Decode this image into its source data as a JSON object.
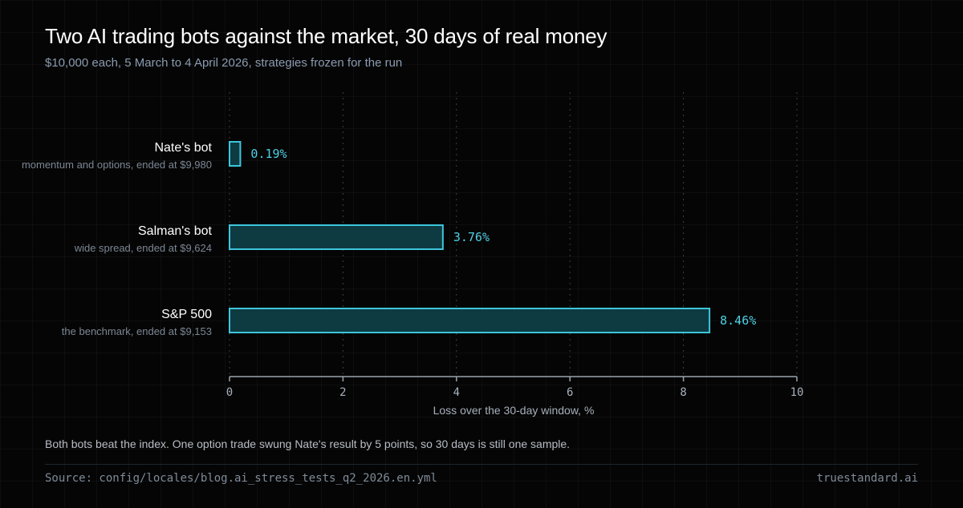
{
  "header": {
    "title": "Two AI trading bots against the market, 30 days of real money",
    "subtitle": "$10,000 each, 5 March to 4 April 2026, strategies frozen for the run"
  },
  "chart_data": {
    "type": "bar",
    "orientation": "horizontal",
    "categories": [
      "Nate's bot",
      "Salman's bot",
      "S&P 500"
    ],
    "category_notes": [
      "momentum and options, ended at $9,980",
      "wide spread, ended at $9,624",
      "the benchmark, ended at $9,153"
    ],
    "values": [
      0.19,
      3.76,
      8.46
    ],
    "value_labels": [
      "0.19%",
      "3.76%",
      "8.46%"
    ],
    "xlabel": "Loss over the 30-day window, %",
    "xlim": [
      0,
      10
    ],
    "xticks": [
      0,
      2,
      4,
      6,
      8,
      10
    ],
    "grid": "vertical dotted",
    "colors": {
      "bar_stroke": "#3ec6dc",
      "bar_fill": "#0e3a42",
      "value_text": "#4fd0e4"
    }
  },
  "footer": {
    "note": "Both bots beat the index. One option trade swung Nate's result by 5 points, so 30 days is still one sample.",
    "source": "Source: config/locales/blog.ai_stress_tests_q2_2026.en.yml",
    "brand": "truestandard.ai"
  }
}
